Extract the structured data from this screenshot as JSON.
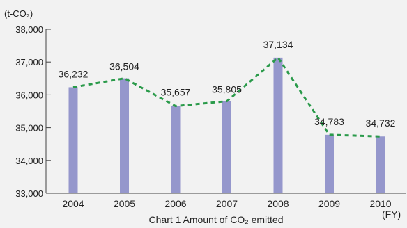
{
  "chart_data": {
    "type": "bar",
    "title": "Chart 1  Amount of CO₂ emitted",
    "ylabel": "(t-CO₂)",
    "xlabel": "(FY)",
    "categories": [
      "2004",
      "2005",
      "2006",
      "2007",
      "2008",
      "2009",
      "2010"
    ],
    "values": [
      36232,
      36504,
      35657,
      35805,
      37134,
      34783,
      34732
    ],
    "data_labels": [
      "36,232",
      "36,504",
      "35,657",
      "35,805",
      "37,134",
      "34,783",
      "34,732"
    ],
    "ylim": [
      33000,
      38000
    ],
    "yticks": [
      33000,
      34000,
      35000,
      36000,
      37000,
      38000
    ],
    "ytick_labels": [
      "33,000",
      "34,000",
      "35,000",
      "36,000",
      "37,000",
      "38,000"
    ],
    "overlay_line": "dashed line connecting bar tops",
    "grid": false,
    "colors": {
      "bar": "#9597cc",
      "line": "#2a9a4a"
    }
  }
}
